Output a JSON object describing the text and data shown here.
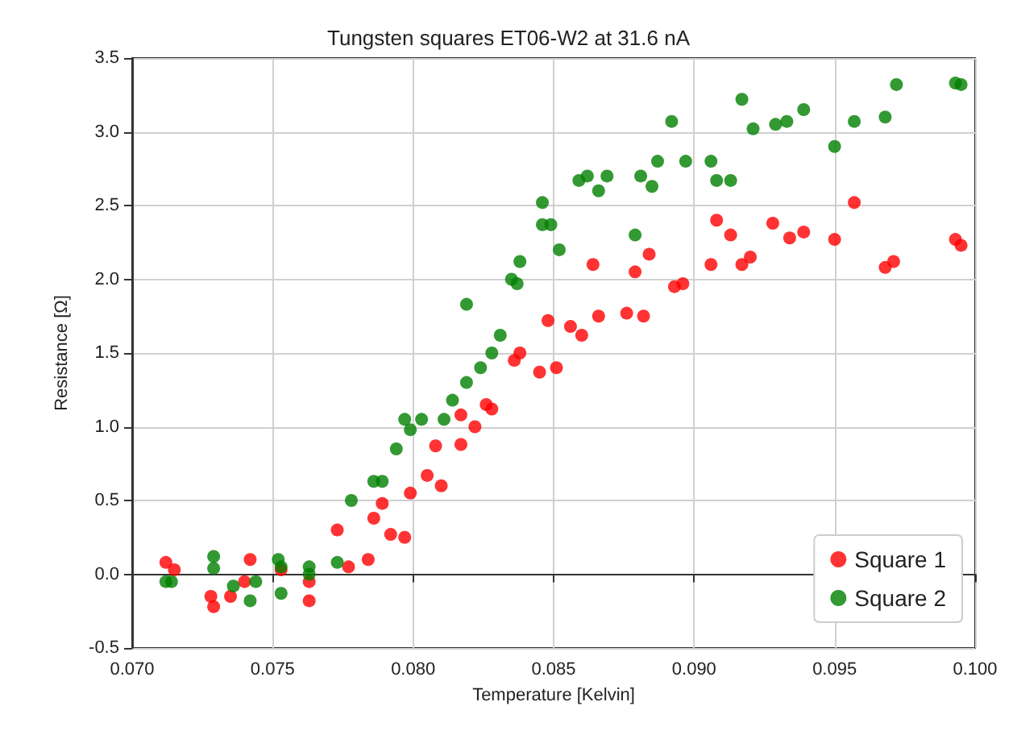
{
  "chart_data": {
    "type": "scatter",
    "title": "Tungsten squares ET06-W2 at 31.6 nA",
    "xlabel": "Temperature [Kelvin]",
    "ylabel": "Resistance [Ω]",
    "xlim": [
      0.07,
      0.1
    ],
    "ylim": [
      -0.5,
      3.5
    ],
    "xticks": [
      {
        "value": 0.07,
        "label": "0.070"
      },
      {
        "value": 0.075,
        "label": "0.075"
      },
      {
        "value": 0.08,
        "label": "0.080"
      },
      {
        "value": 0.085,
        "label": "0.085"
      },
      {
        "value": 0.09,
        "label": "0.090"
      },
      {
        "value": 0.095,
        "label": "0.095"
      },
      {
        "value": 0.1,
        "label": "0.100"
      }
    ],
    "yticks": [
      -0.5,
      {
        "value": 0,
        "label": "0.0"
      },
      0.5,
      {
        "value": 1,
        "label": "1.0"
      },
      1.5,
      {
        "value": 2,
        "label": "2.0"
      },
      2.5,
      {
        "value": 3,
        "label": "3.0"
      },
      3.5
    ],
    "grid": true,
    "legend": "bottom right",
    "marker": "circle",
    "series": [
      {
        "name": "Square 1",
        "color": "#ff0000",
        "x": [
          0.0712,
          0.0715,
          0.0728,
          0.0729,
          0.0735,
          0.074,
          0.0742,
          0.0753,
          0.0763,
          0.0763,
          0.0773,
          0.0777,
          0.0784,
          0.0786,
          0.0789,
          0.0792,
          0.0797,
          0.0799,
          0.0805,
          0.0808,
          0.081,
          0.0817,
          0.0817,
          0.0822,
          0.0826,
          0.0828,
          0.0836,
          0.0838,
          0.0845,
          0.0848,
          0.0851,
          0.0856,
          0.086,
          0.0864,
          0.0866,
          0.0876,
          0.0879,
          0.0882,
          0.0884,
          0.0893,
          0.0896,
          0.0906,
          0.0908,
          0.0913,
          0.0917,
          0.092,
          0.0928,
          0.0934,
          0.0939,
          0.095,
          0.0957,
          0.0968,
          0.0971,
          0.0993,
          0.0995
        ],
        "values": [
          0.08,
          0.03,
          -0.15,
          -0.22,
          -0.15,
          -0.05,
          0.1,
          0.03,
          -0.05,
          -0.18,
          0.3,
          0.05,
          0.1,
          0.38,
          0.48,
          0.27,
          0.25,
          0.55,
          0.67,
          0.87,
          0.6,
          1.08,
          0.88,
          1.0,
          1.15,
          1.12,
          1.45,
          1.5,
          1.37,
          1.72,
          1.4,
          1.68,
          1.62,
          2.1,
          1.75,
          1.77,
          2.05,
          1.75,
          2.17,
          1.95,
          1.97,
          2.1,
          2.4,
          2.3,
          2.1,
          2.15,
          2.38,
          2.28,
          2.32,
          2.27,
          2.52,
          2.08,
          2.12,
          2.27,
          2.23
        ]
      },
      {
        "name": "Square 2",
        "color": "#008000",
        "x": [
          0.0712,
          0.0714,
          0.0729,
          0.0729,
          0.0736,
          0.0742,
          0.0744,
          0.0752,
          0.0753,
          0.0753,
          0.0763,
          0.0763,
          0.0773,
          0.0778,
          0.0786,
          0.0789,
          0.0794,
          0.0797,
          0.0799,
          0.0803,
          0.0811,
          0.0814,
          0.0819,
          0.0819,
          0.0824,
          0.0828,
          0.0831,
          0.0835,
          0.0837,
          0.0838,
          0.0846,
          0.0846,
          0.0849,
          0.0852,
          0.0859,
          0.0862,
          0.0866,
          0.0869,
          0.0879,
          0.0881,
          0.0885,
          0.0887,
          0.0892,
          0.0897,
          0.0906,
          0.0908,
          0.0913,
          0.0917,
          0.0921,
          0.0929,
          0.0933,
          0.0939,
          0.095,
          0.0957,
          0.0968,
          0.0972,
          0.0993,
          0.0995
        ],
        "values": [
          -0.05,
          -0.05,
          0.04,
          0.12,
          -0.08,
          -0.18,
          -0.05,
          0.1,
          0.05,
          -0.13,
          0.05,
          0.0,
          0.08,
          0.5,
          0.63,
          0.63,
          0.85,
          1.05,
          0.98,
          1.05,
          1.05,
          1.18,
          1.3,
          1.83,
          1.4,
          1.5,
          1.62,
          2.0,
          1.97,
          2.12,
          2.37,
          2.52,
          2.37,
          2.2,
          2.67,
          2.7,
          2.6,
          2.7,
          2.3,
          2.7,
          2.63,
          2.8,
          3.07,
          2.8,
          2.8,
          2.67,
          2.67,
          3.22,
          3.02,
          3.05,
          3.07,
          3.15,
          2.9,
          3.07,
          3.1,
          3.32,
          3.33,
          3.32
        ]
      }
    ]
  }
}
